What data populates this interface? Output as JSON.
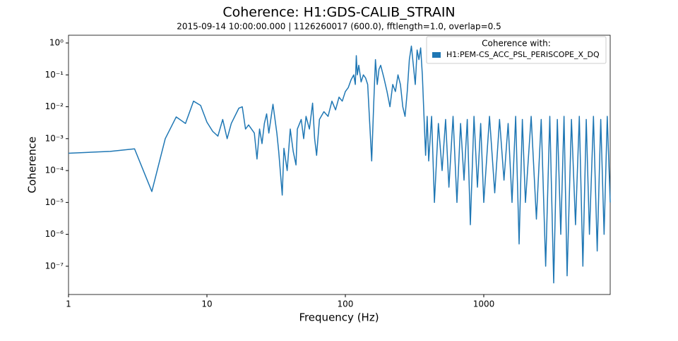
{
  "chart_data": {
    "type": "line",
    "title": "Coherence: H1:GDS-CALIB_STRAIN",
    "subtitle": "2015-09-14 10:00:00.000 | 1126260017 (600.0), fftlength=1.0, overlap=0.5",
    "x_label": "Frequency (Hz)",
    "y_label": "Coherence",
    "legend_title": "Coherence with:",
    "legend": "upper right",
    "log_x": true,
    "log_y": true,
    "xlim": [
      1,
      8192
    ],
    "ylim": [
      1.3e-08,
      1.75
    ],
    "xticks": [
      1,
      10,
      100,
      1000
    ],
    "yticks": [
      {
        "value": 1,
        "label": "10⁰"
      },
      {
        "value": 0.1,
        "label": "10⁻¹"
      },
      {
        "value": 0.01,
        "label": "10⁻²"
      },
      {
        "value": 0.001,
        "label": "10⁻³"
      },
      {
        "value": 0.0001,
        "label": "10⁻⁴"
      },
      {
        "value": 1e-05,
        "label": "10⁻⁵"
      },
      {
        "value": 1e-06,
        "label": "10⁻⁶"
      },
      {
        "value": 1e-07,
        "label": "10⁻⁷"
      }
    ],
    "x": [
      1,
      2,
      3,
      4,
      5,
      6,
      7,
      8,
      9,
      10,
      11,
      12,
      13,
      14,
      15,
      17,
      18,
      19,
      20,
      22,
      23,
      24,
      25,
      26,
      27,
      28,
      30,
      32,
      33,
      35,
      36,
      38,
      40,
      42,
      44,
      45,
      48,
      50,
      52,
      55,
      58,
      60,
      62,
      65,
      70,
      75,
      80,
      85,
      90,
      95,
      100,
      105,
      110,
      115,
      118,
      120,
      122,
      125,
      130,
      135,
      140,
      145,
      150,
      155,
      160,
      165,
      170,
      175,
      180,
      190,
      200,
      210,
      220,
      230,
      240,
      250,
      260,
      270,
      280,
      290,
      300,
      310,
      320,
      330,
      340,
      350,
      360,
      370,
      380,
      390,
      400,
      420,
      440,
      470,
      500,
      530,
      560,
      600,
      640,
      680,
      720,
      760,
      800,
      850,
      900,
      950,
      1000,
      1100,
      1200,
      1300,
      1400,
      1500,
      1600,
      1700,
      1800,
      1900,
      2000,
      2200,
      2400,
      2600,
      2800,
      3000,
      3200,
      3400,
      3600,
      3800,
      4000,
      4300,
      4600,
      4900,
      5200,
      5500,
      5800,
      6200,
      6600,
      7000,
      7400,
      7800,
      8192
    ],
    "series": [
      {
        "name": "H1:PEM-CS_ACC_PSL_PERISCOPE_X_DQ",
        "color": "#1f77b4",
        "values": [
          0.00035,
          0.0004,
          0.00048,
          2.2e-05,
          0.001,
          0.0048,
          0.003,
          0.015,
          0.011,
          0.0033,
          0.0017,
          0.0012,
          0.004,
          0.001,
          0.003,
          0.009,
          0.01,
          0.002,
          0.0027,
          0.0015,
          0.00023,
          0.002,
          0.0007,
          0.003,
          0.006,
          0.0015,
          0.012,
          0.0015,
          0.0004,
          1.7e-05,
          0.0005,
          0.0001,
          0.002,
          0.0004,
          0.00015,
          0.002,
          0.004,
          0.001,
          0.005,
          0.002,
          0.013,
          0.001,
          0.0003,
          0.004,
          0.007,
          0.005,
          0.015,
          0.008,
          0.02,
          0.015,
          0.03,
          0.04,
          0.07,
          0.1,
          0.05,
          0.4,
          0.1,
          0.2,
          0.06,
          0.1,
          0.08,
          0.05,
          0.003,
          0.0002,
          0.01,
          0.3,
          0.05,
          0.15,
          0.2,
          0.08,
          0.03,
          0.01,
          0.05,
          0.03,
          0.1,
          0.05,
          0.01,
          0.005,
          0.03,
          0.3,
          0.8,
          0.2,
          0.05,
          0.6,
          0.3,
          0.7,
          0.1,
          0.005,
          0.0003,
          0.005,
          0.0002,
          0.005,
          1e-05,
          0.003,
          0.0001,
          0.004,
          3e-05,
          0.005,
          1e-05,
          0.003,
          5e-05,
          0.004,
          2e-06,
          0.005,
          3e-05,
          0.003,
          1e-05,
          0.005,
          2e-05,
          0.004,
          5e-05,
          0.003,
          1e-05,
          0.005,
          5e-07,
          0.004,
          1e-05,
          0.005,
          3e-06,
          0.004,
          1e-07,
          0.005,
          3e-08,
          0.004,
          1e-06,
          0.005,
          5e-08,
          0.004,
          2e-06,
          0.005,
          1e-07,
          0.004,
          1e-06,
          0.005,
          3e-07,
          0.004,
          1e-06,
          0.005,
          1e-05
        ]
      }
    ]
  }
}
